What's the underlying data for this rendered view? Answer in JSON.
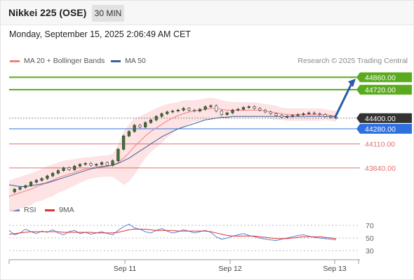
{
  "header": {
    "title": "Nikkei 225 (OSE)",
    "timeframe": "30 MIN"
  },
  "datetime": "Monday, September 15, 2025 2:06:49 AM CET",
  "legend": {
    "ma20_label": "MA 20 + Bollinger Bands",
    "ma50_label": "MA 50",
    "rsi_label": "RSI",
    "rsi9_label": "9MA"
  },
  "credit": "Research © 2025 Trading Central",
  "colors": {
    "ma20": "#f08080",
    "ma50": "#3a5f9e",
    "bollinger_fill": "#fde0e0",
    "resistance": "#5aaa1e",
    "support": "#e07070",
    "pivot": "#2f6fe0",
    "last_price": "#333333",
    "rsi": "#5b7fd6",
    "rsi9": "#e03030",
    "candle": "#3a7a2a",
    "arrow": "#2a5ca8"
  },
  "chart_data": [
    {
      "type": "line",
      "title": "Nikkei 225 (OSE) — 30 MIN",
      "x_ticks": [
        "Sep 11",
        "Sep 12",
        "Sep 13"
      ],
      "ylim": [
        43500,
        44950
      ],
      "levels": [
        {
          "value": 44860,
          "label": "44860.00",
          "kind": "resistance"
        },
        {
          "value": 44720,
          "label": "44720.00",
          "kind": "resistance"
        },
        {
          "value": 44400,
          "label": "44400.00",
          "kind": "last"
        },
        {
          "value": 44280,
          "label": "44280.00",
          "kind": "pivot"
        },
        {
          "value": 44110,
          "label": "44110.00",
          "kind": "support"
        },
        {
          "value": 43840,
          "label": "43840.00",
          "kind": "support"
        }
      ],
      "price_x": [
        0,
        2,
        4,
        6,
        8,
        10,
        12,
        14,
        16,
        18,
        20,
        22,
        24,
        26,
        28,
        30,
        32,
        34,
        36,
        38,
        40,
        42,
        44,
        46,
        48,
        50,
        52,
        54,
        56,
        58,
        60,
        62,
        64,
        66,
        68,
        70,
        72,
        74,
        76,
        78,
        80,
        82,
        84,
        86,
        88,
        90,
        92,
        94,
        96,
        98,
        100,
        102,
        104,
        106,
        108,
        110,
        112,
        114,
        116,
        118,
        120
      ],
      "price": [
        43570,
        43600,
        43620,
        43640,
        43680,
        43700,
        43720,
        43750,
        43780,
        43810,
        43840,
        43820,
        43860,
        43880,
        43890,
        43870,
        43880,
        43900,
        43870,
        43920,
        44050,
        44200,
        44250,
        44320,
        44300,
        44350,
        44380,
        44420,
        44450,
        44470,
        44480,
        44490,
        44510,
        44490,
        44480,
        44500,
        44530,
        44540,
        44480,
        44440,
        44460,
        44490,
        44500,
        44520,
        44530,
        44510,
        44490,
        44470,
        44450,
        44430,
        44410,
        44420,
        44430,
        44440,
        44450,
        44460,
        44450,
        44440,
        44420,
        44410,
        44400
      ],
      "ma20": [
        43520,
        43540,
        43560,
        43580,
        43600,
        43630,
        43650,
        43680,
        43700,
        43730,
        43750,
        43770,
        43790,
        43810,
        43830,
        43840,
        43850,
        43860,
        43860,
        43870,
        43900,
        43950,
        44010,
        44080,
        44140,
        44200,
        44250,
        44290,
        44330,
        44370,
        44400,
        44430,
        44450,
        44470,
        44480,
        44490,
        44500,
        44510,
        44510,
        44500,
        44490,
        44490,
        44490,
        44490,
        44490,
        44490,
        44490,
        44480,
        44470,
        44460,
        44450,
        44440,
        44440,
        44440,
        44440,
        44440,
        44440,
        44440,
        44440,
        44430,
        44420
      ],
      "bb_upper": [
        43700,
        43720,
        43740,
        43760,
        43780,
        43800,
        43830,
        43860,
        43880,
        43900,
        43920,
        43930,
        43940,
        43950,
        43960,
        43960,
        43970,
        43980,
        43980,
        44000,
        44100,
        44250,
        44330,
        44400,
        44420,
        44450,
        44480,
        44510,
        44540,
        44560,
        44570,
        44580,
        44600,
        44600,
        44600,
        44610,
        44620,
        44630,
        44620,
        44600,
        44590,
        44580,
        44580,
        44580,
        44580,
        44580,
        44570,
        44560,
        44550,
        44540,
        44520,
        44510,
        44510,
        44510,
        44510,
        44510,
        44510,
        44510,
        44500,
        44490,
        44480
      ],
      "bb_lower": [
        43340,
        43360,
        43380,
        43400,
        43420,
        43460,
        43470,
        43500,
        43520,
        43560,
        43580,
        43610,
        43640,
        43670,
        43700,
        43720,
        43730,
        43740,
        43740,
        43740,
        43700,
        43650,
        43690,
        43760,
        43860,
        43950,
        44020,
        44070,
        44120,
        44180,
        44230,
        44280,
        44300,
        44340,
        44360,
        44370,
        44380,
        44390,
        44400,
        44400,
        44390,
        44400,
        44400,
        44400,
        44400,
        44400,
        44410,
        44400,
        44390,
        44380,
        44380,
        44370,
        44370,
        44370,
        44370,
        44370,
        44370,
        44370,
        44380,
        44370,
        44360
      ],
      "ma50": [
        43650,
        43640,
        43630,
        43630,
        43640,
        43650,
        43660,
        43670,
        43690,
        43710,
        43730,
        43750,
        43770,
        43790,
        43810,
        43830,
        43840,
        43850,
        43860,
        43870,
        43890,
        43920,
        43950,
        43990,
        44030,
        44070,
        44110,
        44150,
        44190,
        44220,
        44250,
        44280,
        44300,
        44320,
        44340,
        44360,
        44380,
        44390,
        44400,
        44410,
        44410,
        44420,
        44420,
        44420,
        44420,
        44420,
        44420,
        44420,
        44420,
        44420,
        44420,
        44420,
        44420,
        44420,
        44420,
        44420,
        44420,
        44420,
        44420,
        44420,
        44420
      ],
      "forecast": {
        "from": 44400,
        "to": 44860
      }
    },
    {
      "type": "line",
      "title": "RSI",
      "x_ticks": [
        "Sep 11",
        "Sep 12",
        "Sep 13"
      ],
      "ylim": [
        20,
        80
      ],
      "y_ticks": [
        70,
        50,
        30
      ],
      "rsi": [
        62,
        55,
        58,
        64,
        60,
        57,
        61,
        59,
        63,
        58,
        55,
        60,
        62,
        57,
        59,
        56,
        58,
        60,
        57,
        55,
        62,
        68,
        72,
        66,
        64,
        60,
        58,
        62,
        65,
        61,
        58,
        60,
        63,
        61,
        58,
        60,
        62,
        59,
        52,
        48,
        50,
        53,
        55,
        57,
        54,
        52,
        50,
        48,
        47,
        46,
        48,
        50,
        52,
        54,
        55,
        53,
        51,
        50,
        49,
        48,
        47
      ],
      "rsi9": [
        56,
        57,
        58,
        59,
        60,
        60,
        60,
        60,
        60,
        60,
        59,
        59,
        59,
        59,
        59,
        59,
        58,
        58,
        58,
        58,
        59,
        61,
        63,
        64,
        64,
        64,
        63,
        62,
        62,
        62,
        62,
        61,
        61,
        61,
        61,
        61,
        61,
        60,
        58,
        56,
        54,
        53,
        53,
        53,
        53,
        53,
        52,
        51,
        50,
        49,
        49,
        49,
        50,
        51,
        52,
        52,
        52,
        52,
        51,
        50,
        49
      ]
    }
  ]
}
